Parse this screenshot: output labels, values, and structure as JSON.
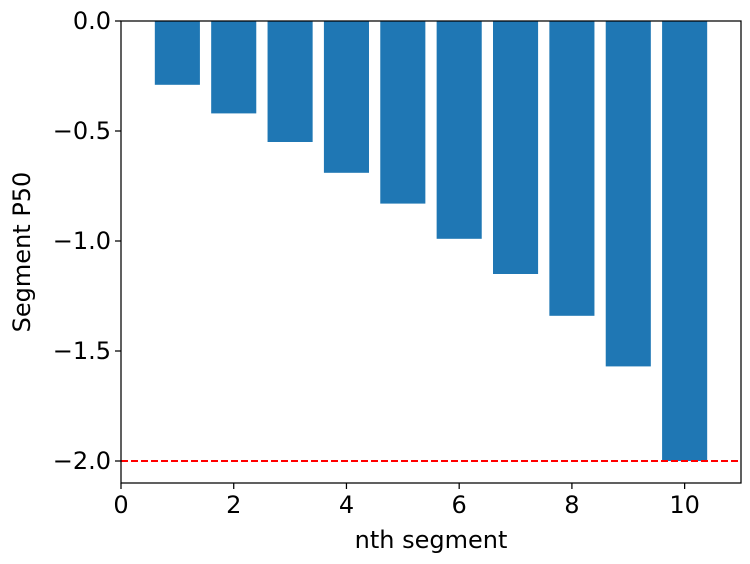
{
  "chart_data": {
    "type": "bar",
    "title": "",
    "xlabel": "nth segment",
    "ylabel": "Segment P50",
    "x": [
      1,
      2,
      3,
      4,
      5,
      6,
      7,
      8,
      9,
      10
    ],
    "values": [
      -0.29,
      -0.42,
      -0.55,
      -0.69,
      -0.83,
      -0.99,
      -1.15,
      -1.34,
      -1.57,
      -2.0
    ],
    "xlim": [
      0,
      11
    ],
    "ylim": [
      -2.1,
      0.0
    ],
    "bar_width": 0.8,
    "xticks": [
      0,
      2,
      4,
      6,
      8,
      10
    ],
    "xtick_labels": [
      "0",
      "2",
      "4",
      "6",
      "8",
      "10"
    ],
    "yticks": [
      0.0,
      -0.5,
      -1.0,
      -1.5,
      -2.0
    ],
    "ytick_labels": [
      "0.0",
      "−0.5",
      "−1.0",
      "−1.5",
      "−2.0"
    ],
    "reference_line": {
      "y": -2.0,
      "style": "dashed",
      "color": "#ff0000"
    },
    "bar_color": "#1f77b4",
    "grid": false,
    "legend": "none"
  }
}
